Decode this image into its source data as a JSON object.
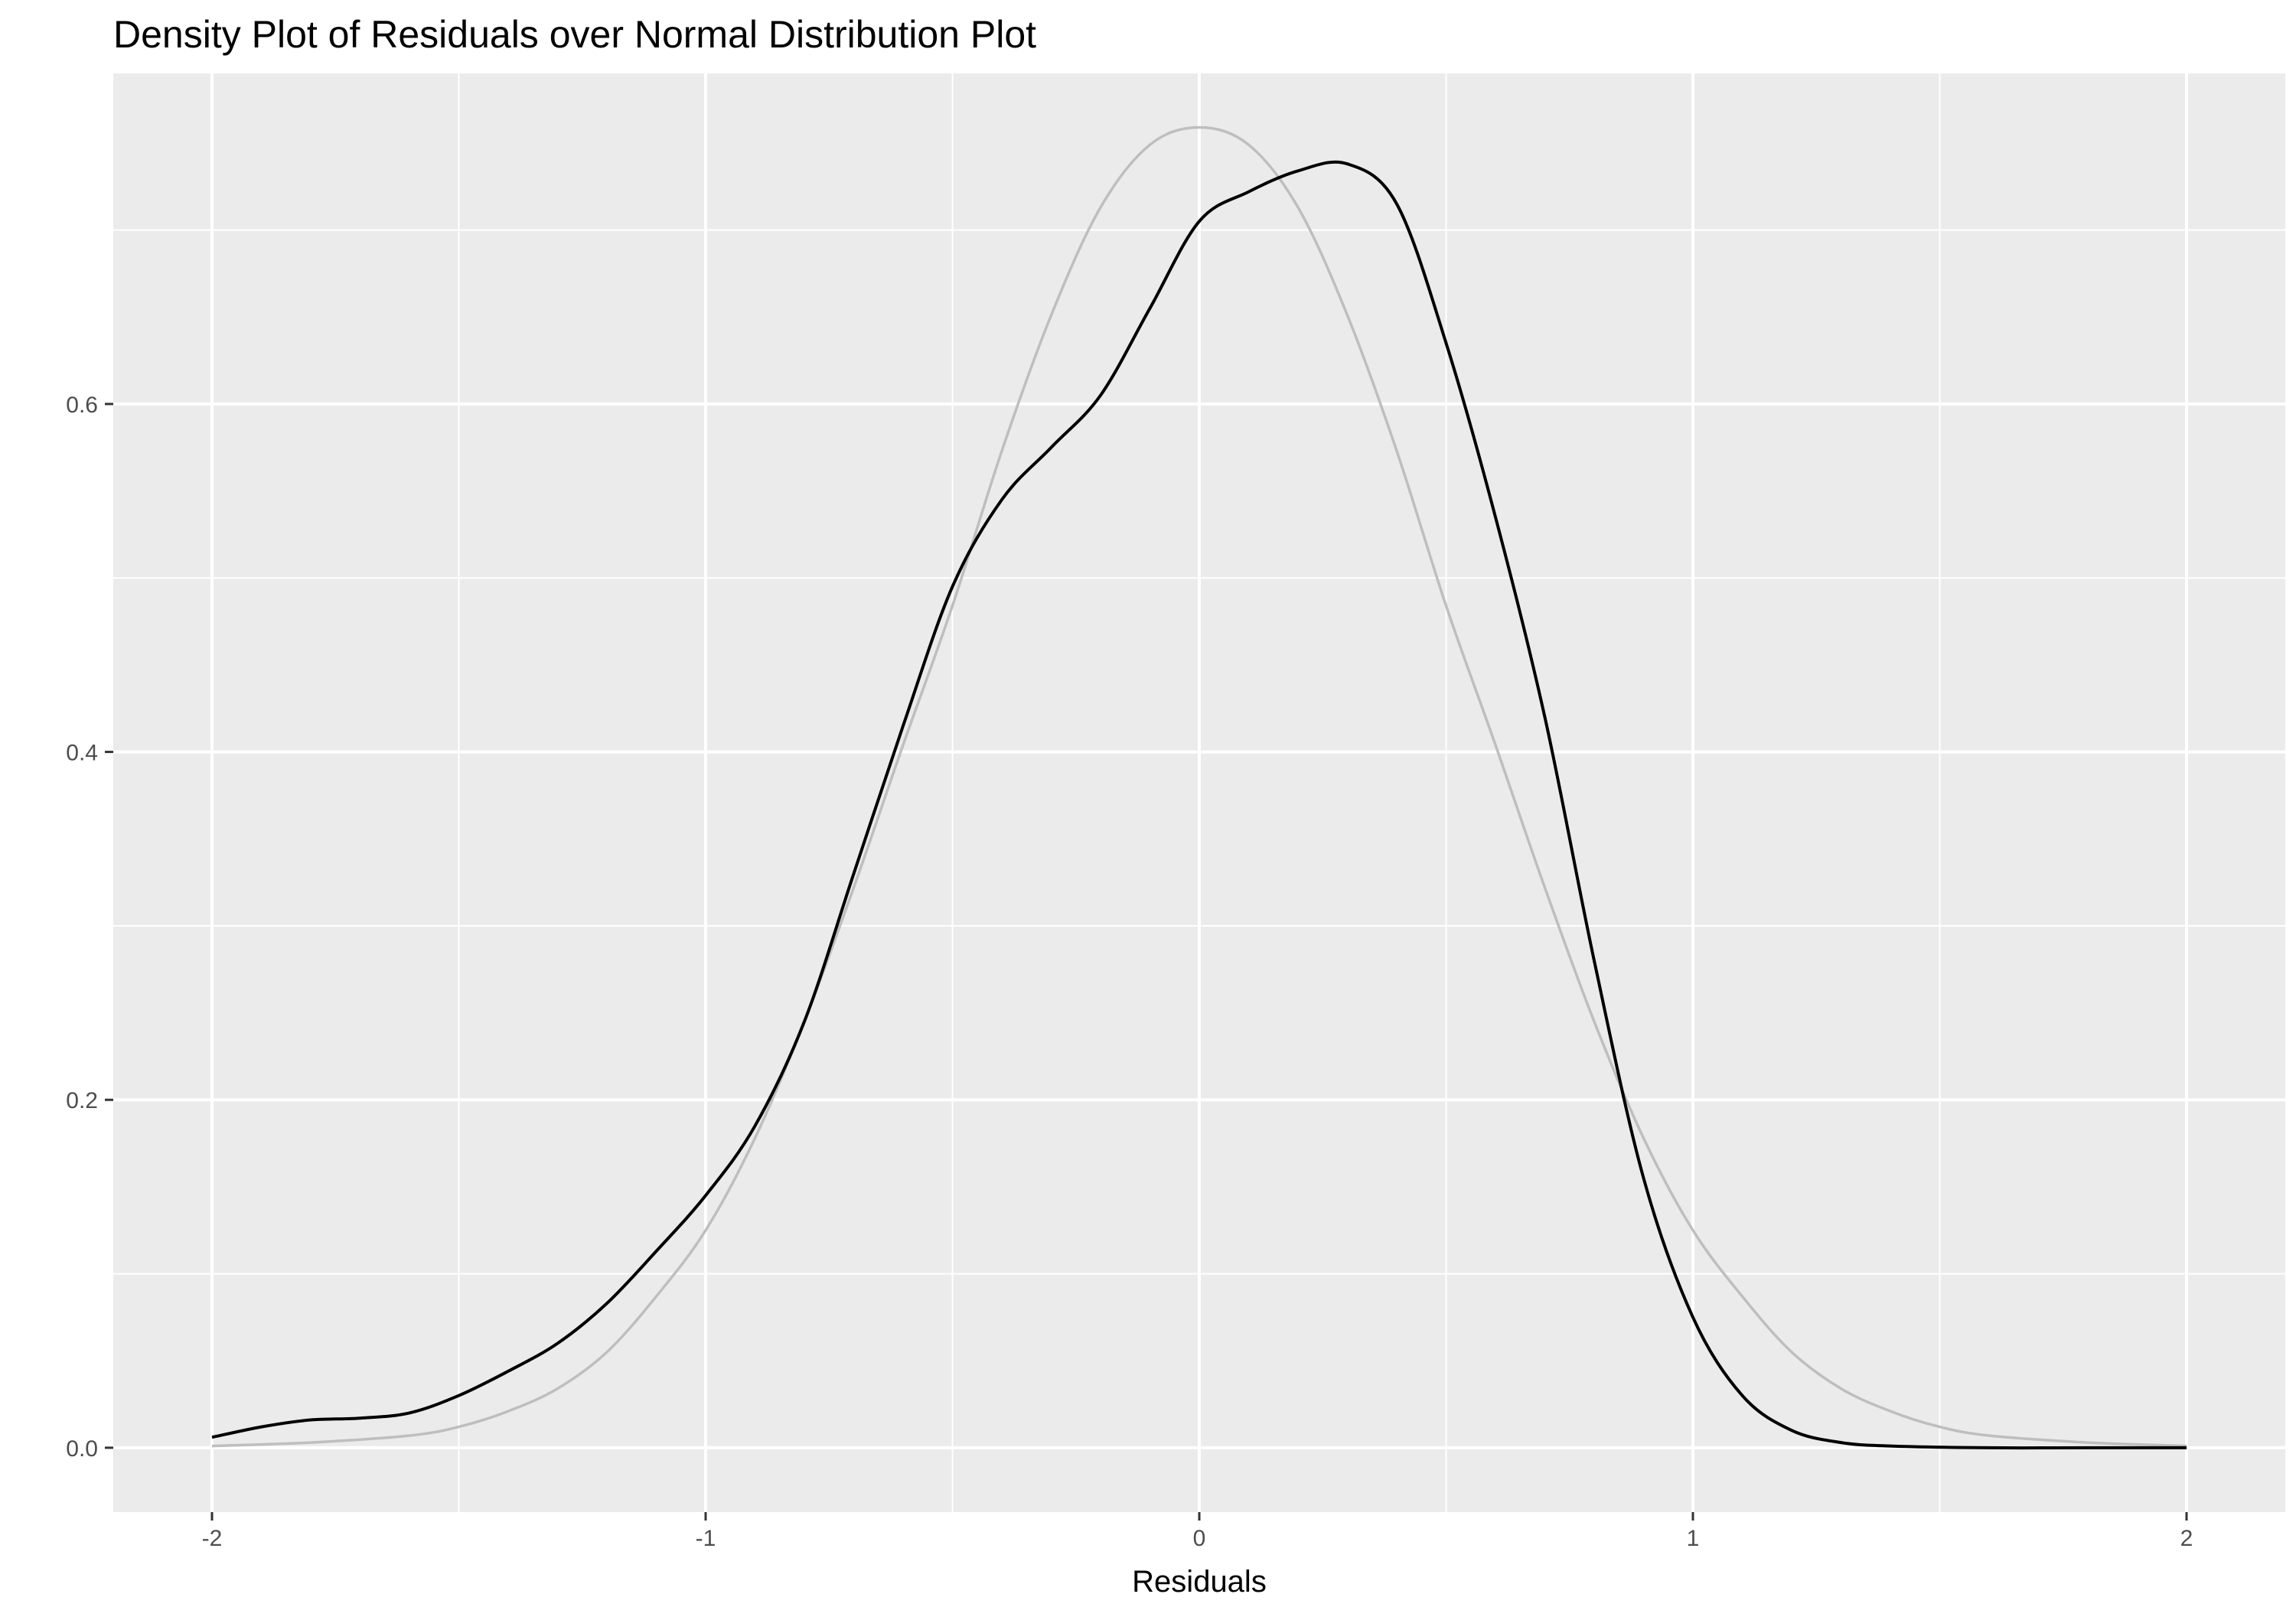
{
  "chart_data": {
    "type": "line",
    "title": "Density Plot of Residuals over Normal Distribution Plot",
    "xlabel": "Residuals",
    "ylabel": "",
    "xlim": [
      -2.2,
      2.2
    ],
    "ylim": [
      -0.037,
      0.79
    ],
    "x_ticks": [
      -2,
      -1,
      0,
      1,
      2
    ],
    "x_tick_labels": [
      "-2",
      "-1",
      "0",
      "1",
      "2"
    ],
    "y_ticks": [
      0.0,
      0.2,
      0.4,
      0.6
    ],
    "y_tick_labels": [
      "0.0",
      "0.2",
      "0.4",
      "0.6"
    ],
    "x_minor": [
      -1.5,
      -0.5,
      0.5,
      1.5
    ],
    "y_minor": [
      0.1,
      0.3,
      0.5,
      0.7
    ],
    "grid": true,
    "background": "#ebebeb",
    "gridline_color": "#ffffff",
    "series": [
      {
        "color": "#bebebe",
        "x": [
          -2.0,
          -1.8,
          -1.6,
          -1.5,
          -1.4,
          -1.3,
          -1.2,
          -1.1,
          -1.0,
          -0.9,
          -0.8,
          -0.7,
          -0.6,
          -0.5,
          -0.4,
          -0.3,
          -0.2,
          -0.1,
          0.0,
          0.1,
          0.2,
          0.3,
          0.4,
          0.5,
          0.6,
          0.7,
          0.8,
          0.9,
          1.0,
          1.1,
          1.2,
          1.3,
          1.4,
          1.5,
          1.6,
          1.8,
          2.0
        ],
        "y": [
          0.001,
          0.003,
          0.007,
          0.012,
          0.021,
          0.034,
          0.055,
          0.087,
          0.125,
          0.178,
          0.245,
          0.322,
          0.404,
          0.484,
          0.573,
          0.651,
          0.713,
          0.749,
          0.759,
          0.749,
          0.713,
          0.651,
          0.573,
          0.484,
          0.404,
          0.322,
          0.245,
          0.178,
          0.125,
          0.087,
          0.055,
          0.034,
          0.021,
          0.012,
          0.007,
          0.003,
          0.001
        ]
      },
      {
        "color": "#000000",
        "x": [
          -2.0,
          -1.9,
          -1.8,
          -1.7,
          -1.6,
          -1.5,
          -1.4,
          -1.3,
          -1.2,
          -1.1,
          -1.0,
          -0.9,
          -0.8,
          -0.7,
          -0.6,
          -0.5,
          -0.4,
          -0.3,
          -0.2,
          -0.1,
          0.0,
          0.1,
          0.2,
          0.3,
          0.4,
          0.5,
          0.6,
          0.7,
          0.8,
          0.9,
          1.0,
          1.1,
          1.2,
          1.3,
          1.4,
          1.6,
          1.8,
          2.0
        ],
        "y": [
          0.006,
          0.012,
          0.016,
          0.017,
          0.02,
          0.03,
          0.044,
          0.06,
          0.083,
          0.113,
          0.145,
          0.185,
          0.245,
          0.33,
          0.415,
          0.495,
          0.545,
          0.575,
          0.605,
          0.655,
          0.705,
          0.722,
          0.734,
          0.738,
          0.715,
          0.635,
          0.535,
          0.42,
          0.28,
          0.155,
          0.075,
          0.03,
          0.01,
          0.003,
          0.001,
          0.0,
          0.0,
          0.0
        ]
      }
    ]
  }
}
